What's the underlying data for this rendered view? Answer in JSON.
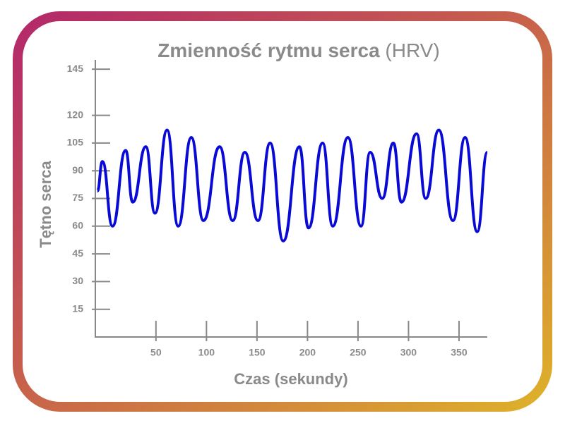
{
  "chart_data": {
    "type": "line",
    "title": "Zmienność rytmu serca",
    "title_note": "(HRV)",
    "x_label": "Czas (sekundy)",
    "y_label": "Tętno serca",
    "x": [
      -8,
      -3,
      7,
      20,
      27,
      40,
      49,
      61,
      72,
      85,
      97,
      113,
      126,
      138,
      151,
      163,
      176,
      192,
      201,
      215,
      225,
      240,
      253,
      262,
      274,
      285,
      293,
      308,
      317,
      330,
      344,
      356,
      368,
      378
    ],
    "series": [
      {
        "name": "Tętno",
        "color": "#0a0ad6",
        "values": [
          79,
          95,
          60,
          101,
          73,
          103,
          67,
          112,
          60,
          108,
          63,
          103,
          63,
          100,
          63,
          105,
          52,
          103,
          59,
          105,
          60,
          108,
          60,
          100,
          75,
          105,
          73,
          110,
          75,
          112,
          63,
          108,
          57,
          100
        ]
      }
    ],
    "xlim": [
      -10,
      378
    ],
    "ylim": [
      0,
      150
    ],
    "xticks": [
      50,
      100,
      150,
      200,
      250,
      300,
      350
    ],
    "yticks": [
      15,
      30,
      45,
      60,
      75,
      90,
      105,
      120,
      145
    ]
  }
}
